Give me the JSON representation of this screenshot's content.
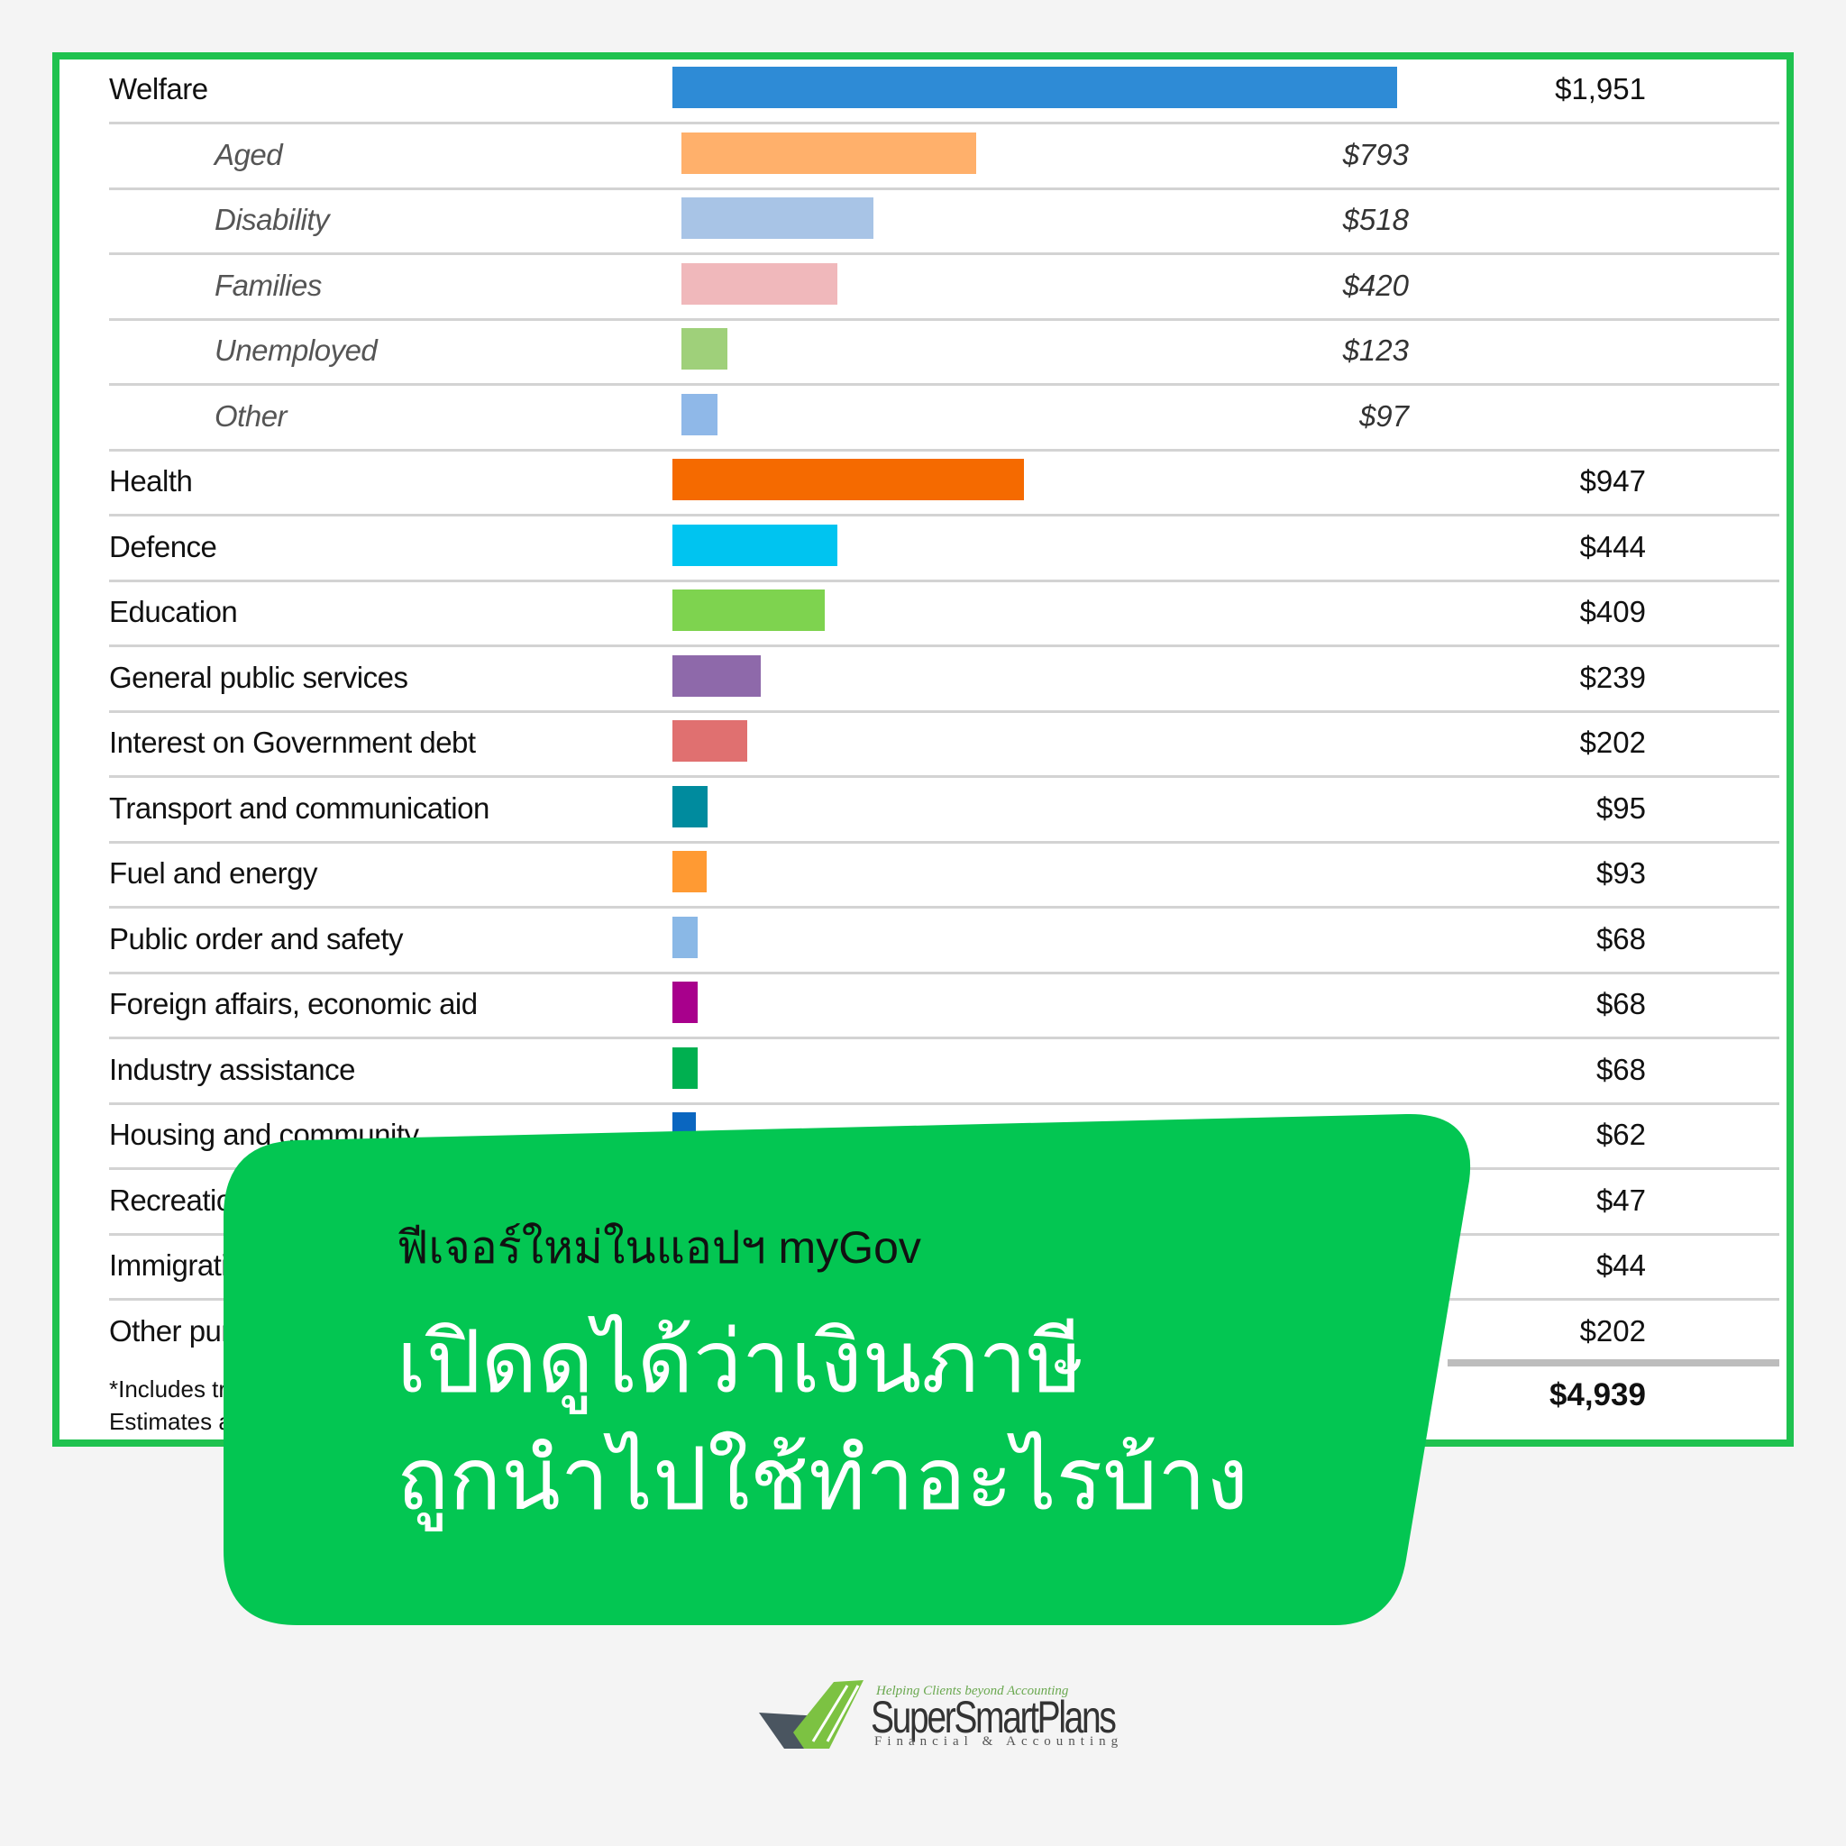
{
  "chart_data": {
    "type": "bar",
    "orientation": "horizontal",
    "rows": [
      {
        "label": "Welfare",
        "value": 1951,
        "value_label": "$1,951",
        "sub": false,
        "color": "#2e8bd6"
      },
      {
        "label": "Aged",
        "value": 793,
        "value_label": "$793",
        "sub": true,
        "color": "#ffb06b"
      },
      {
        "label": "Disability",
        "value": 518,
        "value_label": "$518",
        "sub": true,
        "color": "#a8c4e6"
      },
      {
        "label": "Families",
        "value": 420,
        "value_label": "$420",
        "sub": true,
        "color": "#f0b8bb"
      },
      {
        "label": "Unemployed",
        "value": 123,
        "value_label": "$123",
        "sub": true,
        "color": "#9fd07a"
      },
      {
        "label": "Other",
        "value": 97,
        "value_label": "$97",
        "sub": true,
        "color": "#8fb8e8"
      },
      {
        "label": "Health",
        "value": 947,
        "value_label": "$947",
        "sub": false,
        "color": "#f56a00"
      },
      {
        "label": "Defence",
        "value": 444,
        "value_label": "$444",
        "sub": false,
        "color": "#00c4f0"
      },
      {
        "label": "Education",
        "value": 409,
        "value_label": "$409",
        "sub": false,
        "color": "#7ed34f"
      },
      {
        "label": "General public services",
        "value": 239,
        "value_label": "$239",
        "sub": false,
        "color": "#8e69aa"
      },
      {
        "label": "Interest on Government debt",
        "value": 202,
        "value_label": "$202",
        "sub": false,
        "color": "#e07070"
      },
      {
        "label": "Transport and communication",
        "value": 95,
        "value_label": "$95",
        "sub": false,
        "color": "#008b9e"
      },
      {
        "label": "Fuel and energy",
        "value": 93,
        "value_label": "$93",
        "sub": false,
        "color": "#ff9a33"
      },
      {
        "label": "Public order and safety",
        "value": 68,
        "value_label": "$68",
        "sub": false,
        "color": "#8ab8e6"
      },
      {
        "label": "Foreign affairs, economic aid",
        "value": 68,
        "value_label": "$68",
        "sub": false,
        "color": "#a8008c"
      },
      {
        "label": "Industry assistance",
        "value": 68,
        "value_label": "$68",
        "sub": false,
        "color": "#00b050"
      },
      {
        "label": "Housing and community",
        "value": 62,
        "value_label": "$62",
        "sub": false,
        "color": "#0a66c0"
      },
      {
        "label": "Recreation",
        "value": 47,
        "value_label": "$47",
        "sub": false,
        "color": "#999999"
      },
      {
        "label": "Immigratio",
        "value": 44,
        "value_label": "$44",
        "sub": false,
        "color": "#999999"
      },
      {
        "label": "Other purp",
        "value": 202,
        "value_label": "$202",
        "sub": false,
        "color": "#999999"
      }
    ],
    "total_label": "$4,939",
    "footnotes": [
      "*Includes tra",
      "Estimates ar"
    ],
    "xlim": [
      0,
      2000
    ]
  },
  "overlay": {
    "subtitle": "ฟีเจอร์ใหม่ในแอปฯ myGov",
    "title_line1": "เปิดดูได้ว่าเงินภาษี",
    "title_line2": "ถูกนำไปใช้ทำอะไรบ้าง",
    "card_color": "#03c652"
  },
  "logo": {
    "tagline": "Helping Clients beyond Accounting",
    "name": "SuperSmartPlans",
    "subname": "Financial & Accounting"
  }
}
